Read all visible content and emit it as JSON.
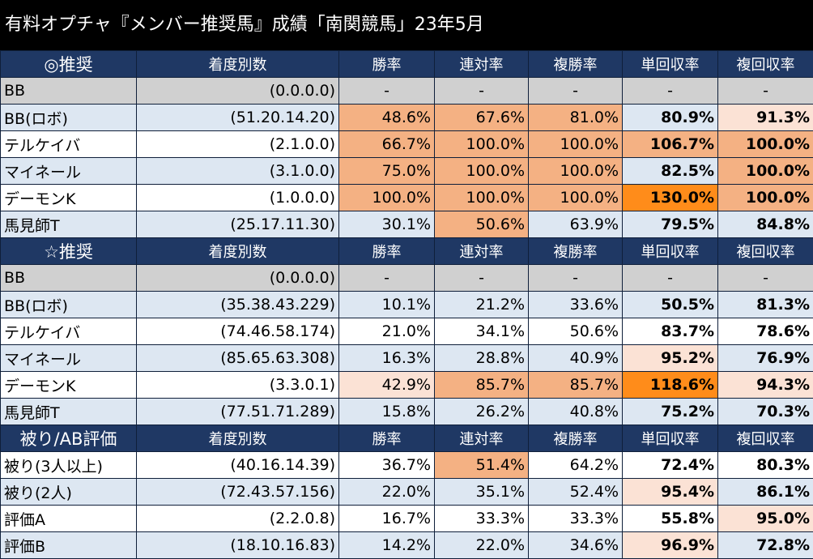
{
  "title": "有料オプチャ『メンバー推奨馬』成績「南関競馬」23年5月",
  "columns": [
    "着度別数",
    "勝率",
    "連対率",
    "複勝率",
    "単回収率",
    "複回収率"
  ],
  "sections": [
    {
      "name": "◎推奨",
      "rows": [
        {
          "name": "BB",
          "record": "(0.0.0.0)",
          "win": "-",
          "place": "-",
          "show": "-",
          "win_ret": "-",
          "show_ret": "-",
          "style": "gray"
        },
        {
          "name": "BB(ロボ)",
          "record": "(51.20.14.20)",
          "win": "48.6%",
          "place": "67.6%",
          "show": "81.0%",
          "win_ret": "80.9%",
          "show_ret": "91.3%",
          "style": "blue",
          "h": [
            "h1",
            "h1",
            "h1",
            "",
            "h2"
          ]
        },
        {
          "name": "テルケイバ",
          "record": "(2.1.0.0)",
          "win": "66.7%",
          "place": "100.0%",
          "show": "100.0%",
          "win_ret": "106.7%",
          "show_ret": "100.0%",
          "style": "white",
          "h": [
            "h1",
            "h1",
            "h1",
            "h1",
            "h1"
          ]
        },
        {
          "name": "マイネール",
          "record": "(3.1.0.0)",
          "win": "75.0%",
          "place": "100.0%",
          "show": "100.0%",
          "win_ret": "82.5%",
          "show_ret": "100.0%",
          "style": "blue",
          "h": [
            "h1",
            "h1",
            "h1",
            "",
            "h1"
          ]
        },
        {
          "name": "デーモンK",
          "record": "(1.0.0.0)",
          "win": "100.0%",
          "place": "100.0%",
          "show": "100.0%",
          "win_ret": "130.0%",
          "show_ret": "100.0%",
          "style": "white",
          "h": [
            "h1",
            "h1",
            "h1",
            "h3",
            "h1"
          ]
        },
        {
          "name": "馬見師T",
          "record": "(25.17.11.30)",
          "win": "30.1%",
          "place": "50.6%",
          "show": "63.9%",
          "win_ret": "79.5%",
          "show_ret": "84.8%",
          "style": "blue",
          "h": [
            "",
            "h1",
            "",
            "",
            ""
          ]
        }
      ]
    },
    {
      "name": "☆推奨",
      "rows": [
        {
          "name": "BB",
          "record": "(0.0.0.0)",
          "win": "-",
          "place": "-",
          "show": "-",
          "win_ret": "-",
          "show_ret": "-",
          "style": "gray"
        },
        {
          "name": "BB(ロボ)",
          "record": "(35.38.43.229)",
          "win": "10.1%",
          "place": "21.2%",
          "show": "33.6%",
          "win_ret": "50.5%",
          "show_ret": "81.3%",
          "style": "blue",
          "h": [
            "",
            "",
            "",
            "",
            ""
          ]
        },
        {
          "name": "テルケイバ",
          "record": "(74.46.58.174)",
          "win": "21.0%",
          "place": "34.1%",
          "show": "50.6%",
          "win_ret": "83.7%",
          "show_ret": "78.6%",
          "style": "white",
          "h": [
            "",
            "",
            "",
            "",
            ""
          ]
        },
        {
          "name": "マイネール",
          "record": "(85.65.63.308)",
          "win": "16.3%",
          "place": "28.8%",
          "show": "40.9%",
          "win_ret": "95.2%",
          "show_ret": "76.9%",
          "style": "blue",
          "h": [
            "",
            "",
            "",
            "h2",
            ""
          ]
        },
        {
          "name": "デーモンK",
          "record": "(3.3.0.1)",
          "win": "42.9%",
          "place": "85.7%",
          "show": "85.7%",
          "win_ret": "118.6%",
          "show_ret": "94.3%",
          "style": "white",
          "h": [
            "h2",
            "h1",
            "h1",
            "h3",
            "h2"
          ]
        },
        {
          "name": "馬見師T",
          "record": "(77.51.71.289)",
          "win": "15.8%",
          "place": "26.2%",
          "show": "40.8%",
          "win_ret": "75.2%",
          "show_ret": "70.3%",
          "style": "blue",
          "h": [
            "",
            "",
            "",
            "",
            ""
          ]
        }
      ]
    },
    {
      "name": "被り/AB評価",
      "rows": [
        {
          "name": "被り(3人以上)",
          "record": "(40.16.14.39)",
          "win": "36.7%",
          "place": "51.4%",
          "show": "64.2%",
          "win_ret": "72.4%",
          "show_ret": "80.3%",
          "style": "white",
          "h": [
            "",
            "h1",
            "",
            "",
            ""
          ]
        },
        {
          "name": "被り(2人)",
          "record": "(72.43.57.156)",
          "win": "22.0%",
          "place": "35.1%",
          "show": "52.4%",
          "win_ret": "95.4%",
          "show_ret": "86.1%",
          "style": "blue",
          "h": [
            "",
            "",
            "",
            "h2",
            ""
          ]
        },
        {
          "name": "評価A",
          "record": "(2.2.0.8)",
          "win": "16.7%",
          "place": "33.3%",
          "show": "33.3%",
          "win_ret": "55.8%",
          "show_ret": "95.0%",
          "style": "white",
          "h": [
            "",
            "",
            "",
            "",
            "h2"
          ]
        },
        {
          "name": "評価B",
          "record": "(18.10.16.83)",
          "win": "14.2%",
          "place": "22.0%",
          "show": "34.6%",
          "win_ret": "96.9%",
          "show_ret": "72.8%",
          "style": "blue",
          "h": [
            "",
            "",
            "",
            "h2",
            ""
          ]
        }
      ]
    }
  ]
}
